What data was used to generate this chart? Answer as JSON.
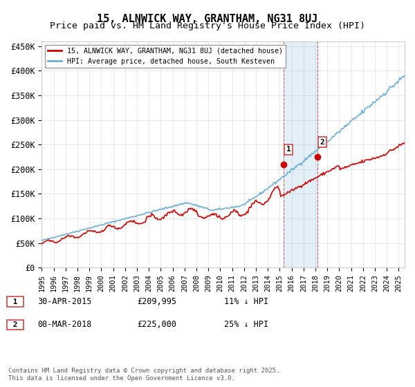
{
  "title": "15, ALNWICK WAY, GRANTHAM, NG31 8UJ",
  "subtitle": "Price paid vs. HM Land Registry's House Price Index (HPI)",
  "ylabel_ticks": [
    "£0",
    "£50K",
    "£100K",
    "£150K",
    "£200K",
    "£250K",
    "£300K",
    "£350K",
    "£400K",
    "£450K"
  ],
  "ytick_values": [
    0,
    50000,
    100000,
    150000,
    200000,
    250000,
    300000,
    350000,
    400000,
    450000
  ],
  "ylim": [
    0,
    460000
  ],
  "xlim_start": 1995.0,
  "xlim_end": 2025.5,
  "hpi_color": "#6baed6",
  "price_color": "#cc0000",
  "sale1_date": 2015.33,
  "sale1_price": 209995,
  "sale1_label": "1",
  "sale2_date": 2018.18,
  "sale2_price": 225000,
  "sale2_label": "2",
  "shade_x1": 2015.33,
  "shade_x2": 2018.18,
  "legend_line1": "15, ALNWICK WAY, GRANTHAM, NG31 8UJ (detached house)",
  "legend_line2": "HPI: Average price, detached house, South Kesteven",
  "footnote": "Contains HM Land Registry data © Crown copyright and database right 2025.\nThis data is licensed under the Open Government Licence v3.0.",
  "background_color": "#ffffff",
  "grid_color": "#dddddd",
  "title_fontsize": 11,
  "subtitle_fontsize": 9.5
}
